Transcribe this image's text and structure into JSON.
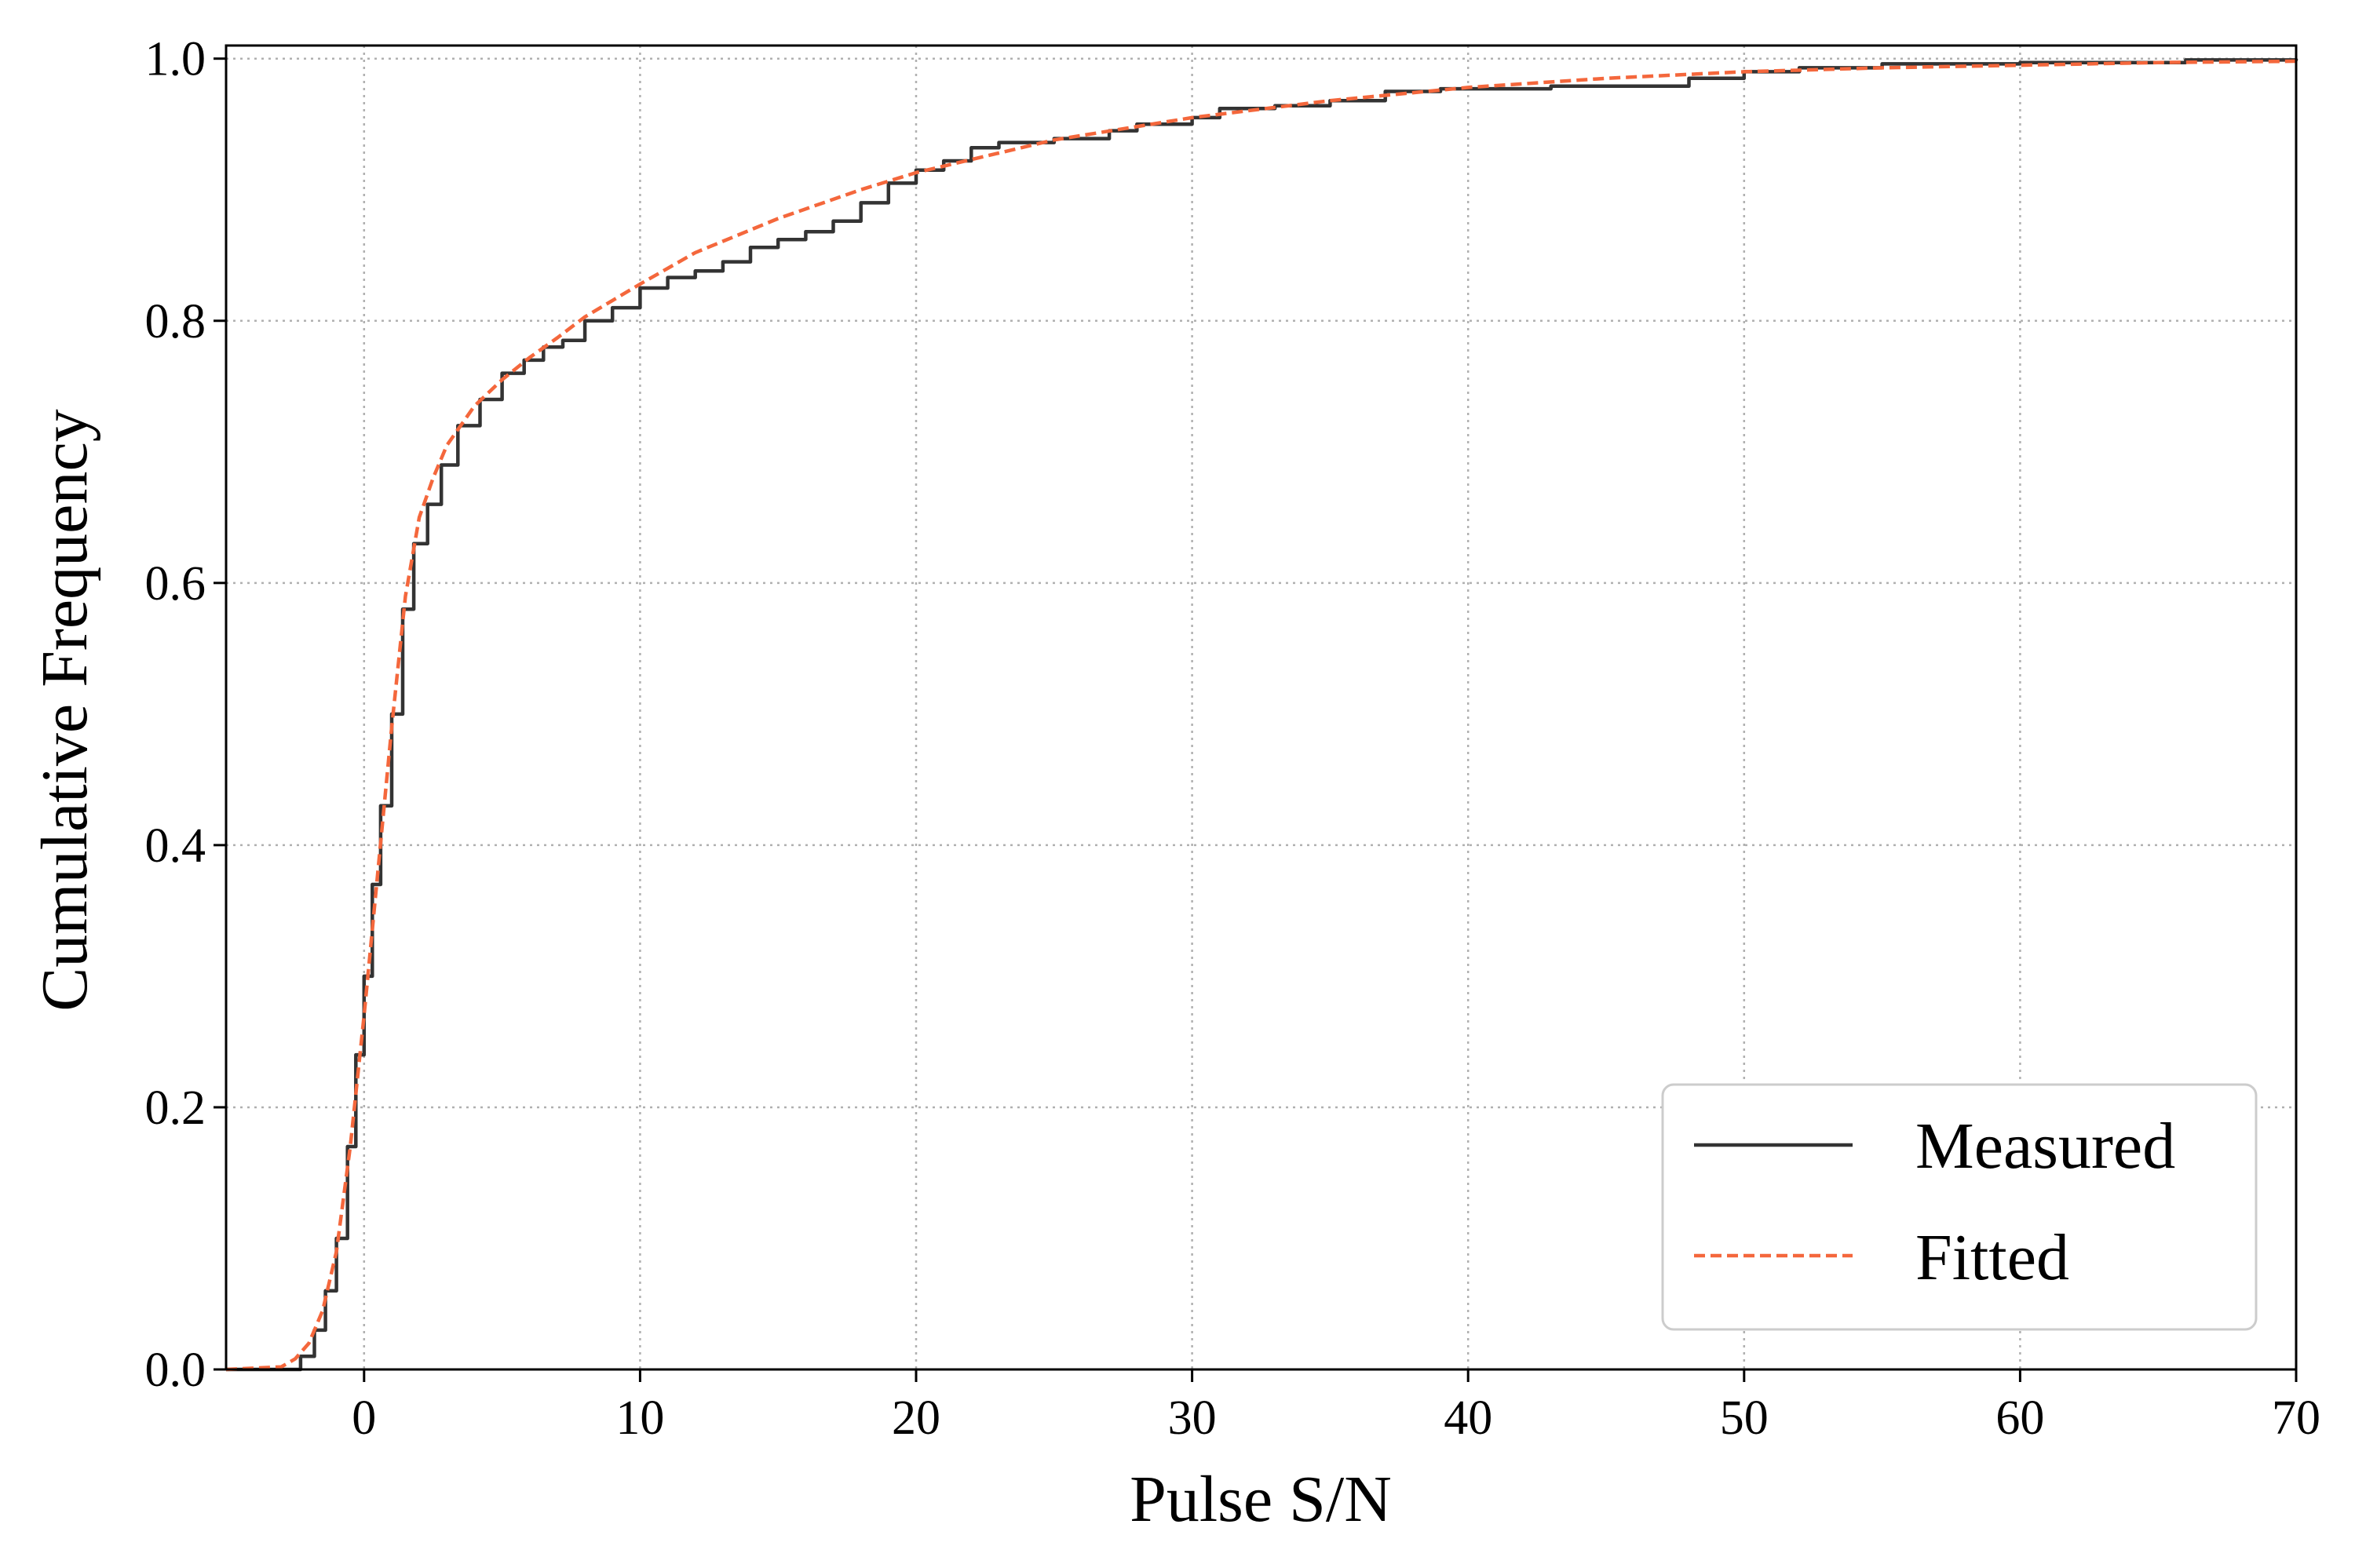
{
  "chart_data": {
    "type": "line",
    "title": "",
    "xlabel": "Pulse S/N",
    "ylabel": "Cumulative Frequency",
    "xlim": [
      -5,
      70
    ],
    "ylim": [
      0.0,
      1.01
    ],
    "x_ticks": [
      0,
      10,
      20,
      30,
      40,
      50,
      60,
      70
    ],
    "x_tick_labels": [
      "0",
      "10",
      "20",
      "30",
      "40",
      "50",
      "60",
      "70"
    ],
    "y_ticks": [
      0.0,
      0.2,
      0.4,
      0.6,
      0.8,
      1.0
    ],
    "y_tick_labels": [
      "0.0",
      "0.2",
      "0.4",
      "0.6",
      "0.8",
      "1.0"
    ],
    "grid": true,
    "legend_position": "bottom-right",
    "series": [
      {
        "name": "Measured",
        "color": "#333333",
        "style": "solid-step",
        "points": [
          [
            -5,
            0.0
          ],
          [
            -2.6,
            0.0
          ],
          [
            -2.3,
            0.01
          ],
          [
            -1.8,
            0.03
          ],
          [
            -1.4,
            0.06
          ],
          [
            -1.0,
            0.1
          ],
          [
            -0.6,
            0.17
          ],
          [
            -0.3,
            0.24
          ],
          [
            0.0,
            0.3
          ],
          [
            0.3,
            0.37
          ],
          [
            0.6,
            0.43
          ],
          [
            1.0,
            0.5
          ],
          [
            1.4,
            0.58
          ],
          [
            1.8,
            0.63
          ],
          [
            2.3,
            0.66
          ],
          [
            2.8,
            0.69
          ],
          [
            3.4,
            0.72
          ],
          [
            4.2,
            0.74
          ],
          [
            5.0,
            0.76
          ],
          [
            5.8,
            0.77
          ],
          [
            6.5,
            0.78
          ],
          [
            7.2,
            0.785
          ],
          [
            8.0,
            0.8
          ],
          [
            9.0,
            0.81
          ],
          [
            10.0,
            0.825
          ],
          [
            11.0,
            0.833
          ],
          [
            12.0,
            0.838
          ],
          [
            13.0,
            0.845
          ],
          [
            14.0,
            0.856
          ],
          [
            15.0,
            0.862
          ],
          [
            16.0,
            0.868
          ],
          [
            17.0,
            0.876
          ],
          [
            18.0,
            0.89
          ],
          [
            19.0,
            0.905
          ],
          [
            20.0,
            0.915
          ],
          [
            21.0,
            0.922
          ],
          [
            22.0,
            0.932
          ],
          [
            23.0,
            0.936
          ],
          [
            25.0,
            0.939
          ],
          [
            27.0,
            0.945
          ],
          [
            28.0,
            0.95
          ],
          [
            30.0,
            0.955
          ],
          [
            31.0,
            0.962
          ],
          [
            33.0,
            0.964
          ],
          [
            35.0,
            0.968
          ],
          [
            37.0,
            0.975
          ],
          [
            39.0,
            0.977
          ],
          [
            43.0,
            0.979
          ],
          [
            48.0,
            0.985
          ],
          [
            50.0,
            0.99
          ],
          [
            52.0,
            0.993
          ],
          [
            55.0,
            0.996
          ],
          [
            60.0,
            0.997
          ],
          [
            66.0,
            0.999
          ],
          [
            70.0,
            1.0
          ]
        ]
      },
      {
        "name": "Fitted",
        "color": "#f4673c",
        "style": "dashed",
        "points": [
          [
            -5,
            0.0
          ],
          [
            -3.0,
            0.002
          ],
          [
            -2.5,
            0.008
          ],
          [
            -2.0,
            0.02
          ],
          [
            -1.5,
            0.045
          ],
          [
            -1.0,
            0.09
          ],
          [
            -0.5,
            0.17
          ],
          [
            0.0,
            0.27
          ],
          [
            0.5,
            0.38
          ],
          [
            1.0,
            0.49
          ],
          [
            1.5,
            0.59
          ],
          [
            2.0,
            0.65
          ],
          [
            2.5,
            0.68
          ],
          [
            3.0,
            0.705
          ],
          [
            4.0,
            0.735
          ],
          [
            5.0,
            0.755
          ],
          [
            6.0,
            0.772
          ],
          [
            7.0,
            0.787
          ],
          [
            8.0,
            0.803
          ],
          [
            10.0,
            0.828
          ],
          [
            12.0,
            0.852
          ],
          [
            15.0,
            0.878
          ],
          [
            18.0,
            0.9
          ],
          [
            20.0,
            0.913
          ],
          [
            25.0,
            0.938
          ],
          [
            30.0,
            0.955
          ],
          [
            35.0,
            0.968
          ],
          [
            40.0,
            0.978
          ],
          [
            45.0,
            0.985
          ],
          [
            50.0,
            0.99
          ],
          [
            55.0,
            0.993
          ],
          [
            60.0,
            0.995
          ],
          [
            65.0,
            0.997
          ],
          [
            70.0,
            0.998
          ]
        ]
      }
    ]
  }
}
